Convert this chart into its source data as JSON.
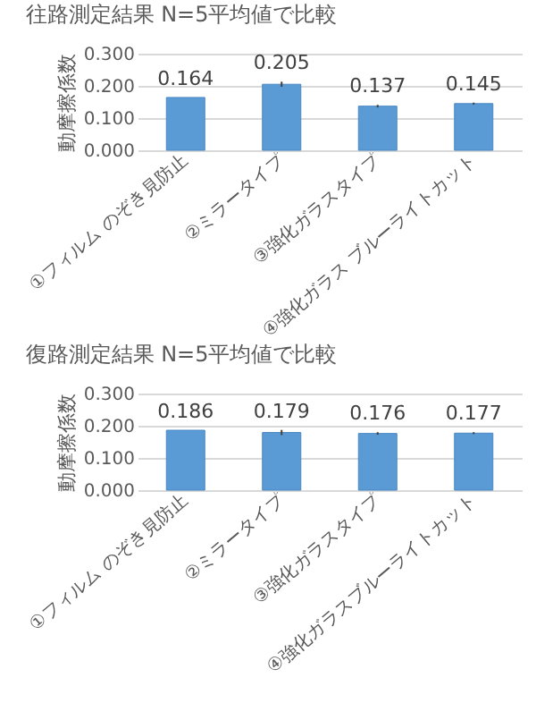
{
  "chart_data": [
    {
      "type": "bar",
      "title": "往路測定結果  N=5平均値で比較",
      "ylabel": "動摩擦係数",
      "categories": [
        "①フィルム のぞき見防止",
        "②ミラータイプ",
        "③強化ガラスタイプ",
        "④強化ガラス ブルーライトカット"
      ],
      "values": [
        0.164,
        0.205,
        0.137,
        0.145
      ],
      "errors": [
        null,
        0.008,
        0.004,
        0.003
      ],
      "color": "#5b9bd5",
      "ylim": [
        0,
        0.3
      ],
      "yticks": [
        {
          "value": 0,
          "label": "0.000"
        },
        {
          "value": 0.1,
          "label": "0.100"
        },
        {
          "value": 0.2,
          "label": "0.200"
        },
        {
          "value": 0.3,
          "label": "0.300"
        }
      ],
      "grid": "y",
      "data_labels": true
    },
    {
      "type": "bar",
      "title": "復路測定結果  N=5平均値で比較",
      "ylabel": "動摩擦係数",
      "categories": [
        "①フィルム のぞき見防止",
        "②ミラータイプ",
        "③強化ガラスタイプ",
        "④強化ガラスブルーライトカット"
      ],
      "values": [
        0.186,
        0.179,
        0.176,
        0.177
      ],
      "errors": [
        null,
        0.008,
        0.004,
        0.003
      ],
      "color": "#5b9bd5",
      "ylim": [
        0,
        0.3
      ],
      "yticks": [
        {
          "value": 0,
          "label": "0.000"
        },
        {
          "value": 0.1,
          "label": "0.100"
        },
        {
          "value": 0.2,
          "label": "0.200"
        },
        {
          "value": 0.3,
          "label": "0.300"
        }
      ],
      "grid": "y",
      "data_labels": true
    }
  ]
}
